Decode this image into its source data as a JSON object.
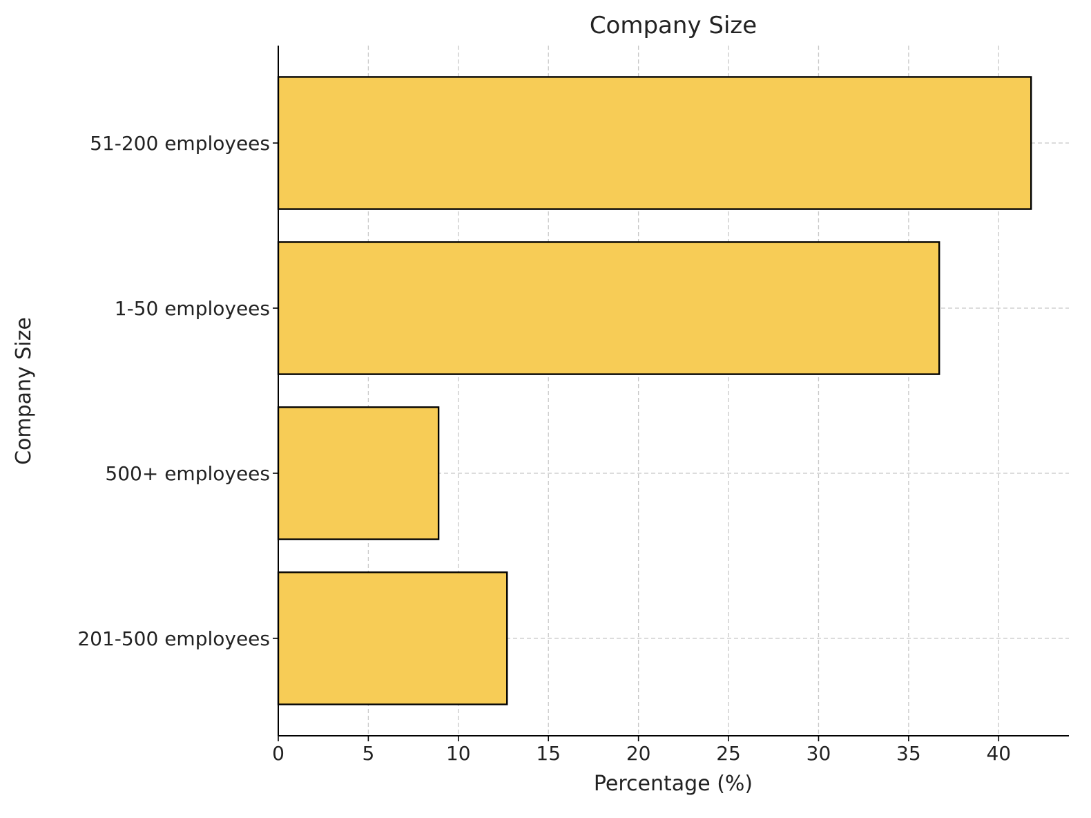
{
  "chart_data": {
    "type": "bar",
    "orientation": "horizontal",
    "title": "Company Size",
    "xlabel": "Percentage (%)",
    "ylabel": "Company Size",
    "categories": [
      "51-200 employees",
      "1-50 employees",
      "500+ employees",
      "201-500 employees"
    ],
    "values": [
      41.8,
      36.7,
      8.9,
      12.7
    ],
    "xlim": [
      0,
      43.9
    ],
    "xticks": [
      0,
      5,
      10,
      15,
      20,
      25,
      30,
      35,
      40
    ],
    "grid": true,
    "bar_color": "#f7cc56",
    "edge_color": "#000000"
  }
}
